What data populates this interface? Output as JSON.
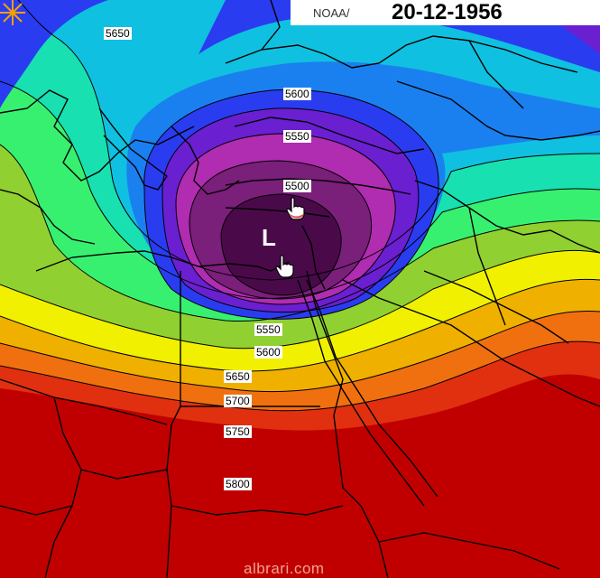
{
  "header": {
    "source": "NOAA/",
    "date": "20-12-1956"
  },
  "watermark": "albrari.com",
  "low_marker": "L",
  "contour_labels": [
    {
      "id": "5650-nw",
      "text": "5650"
    },
    {
      "id": "5600-n",
      "text": "5600"
    },
    {
      "id": "5550-n",
      "text": "5550"
    },
    {
      "id": "5500-n",
      "text": "5500"
    },
    {
      "id": "5550-s",
      "text": "5550"
    },
    {
      "id": "5600-s",
      "text": "5600"
    },
    {
      "id": "5650-s",
      "text": "5650"
    },
    {
      "id": "5700-s",
      "text": "5700"
    },
    {
      "id": "5750-s",
      "text": "5750"
    },
    {
      "id": "5800-s",
      "text": "5800"
    }
  ],
  "icons": [
    "hand-pointer-icon",
    "starburst-icon"
  ],
  "colors": {
    "h5450": "#4a0a4a",
    "h5500": "#7a1f7a",
    "h5550": "#b02cb0",
    "h5600": "#6a1fd0",
    "h5650": "#2a3cf0",
    "h5700": "#1a80f0",
    "h5750": "#10c0e0",
    "h5800": "#18e0b0",
    "h5850": "#38f070",
    "h5900": "#90d030",
    "h5950": "#f0f000",
    "h6000": "#f0b000",
    "h6050": "#f07010",
    "h6100": "#e03010",
    "h6150": "#c00000"
  }
}
